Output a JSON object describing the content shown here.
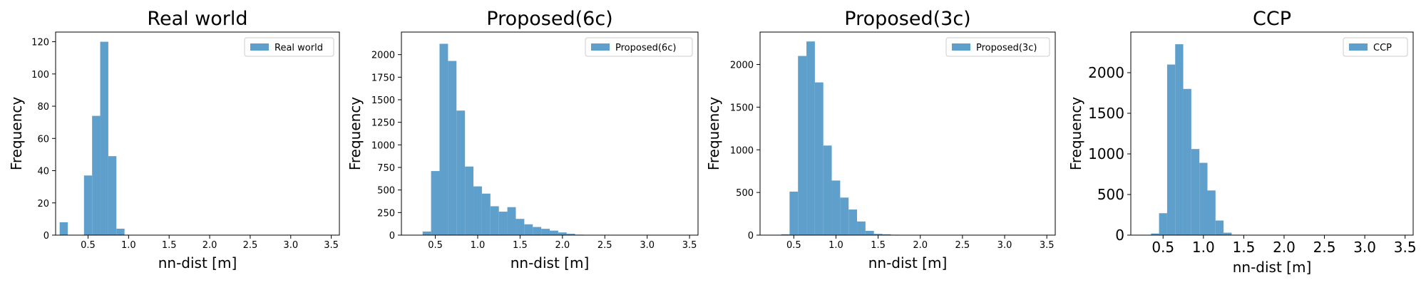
{
  "chart_data": [
    {
      "type": "bar",
      "title": "Real world",
      "xlabel": "nn-dist [m]",
      "ylabel": "Frequency",
      "xlim": [
        0.1,
        3.6
      ],
      "ylim": [
        0,
        126
      ],
      "xticks": [
        "0.5",
        "1.0",
        "1.5",
        "2.0",
        "2.5",
        "3.0",
        "3.5"
      ],
      "yticks": [
        "0",
        "20",
        "40",
        "60",
        "80",
        "100",
        "120"
      ],
      "legend": "top-right",
      "color": "#5f9fcc",
      "bin_width": 0.1,
      "series": [
        {
          "name": "Real world",
          "x": [
            0.2,
            0.3,
            0.4,
            0.5,
            0.6,
            0.7,
            0.8,
            0.9
          ],
          "values": [
            8,
            0,
            0,
            37,
            74,
            120,
            49,
            4
          ]
        }
      ]
    },
    {
      "type": "bar",
      "title": "Proposed(6c)",
      "xlabel": "nn-dist [m]",
      "ylabel": "Frequency",
      "xlim": [
        0.1,
        3.6
      ],
      "ylim": [
        0,
        2250
      ],
      "xticks": [
        "0.5",
        "1.0",
        "1.5",
        "2.0",
        "2.5",
        "3.0",
        "3.5"
      ],
      "yticks": [
        "0",
        "250",
        "500",
        "750",
        "1000",
        "1250",
        "1500",
        "1750",
        "2000"
      ],
      "legend": "top-right",
      "color": "#5f9fcc",
      "bin_width": 0.1,
      "series": [
        {
          "name": "Proposed(6c)",
          "x": [
            0.4,
            0.5,
            0.6,
            0.7,
            0.8,
            0.9,
            1.0,
            1.1,
            1.2,
            1.3,
            1.4,
            1.5,
            1.6,
            1.7,
            1.8,
            1.9,
            2.0,
            2.1,
            2.2
          ],
          "values": [
            40,
            710,
            2120,
            1930,
            1380,
            760,
            540,
            460,
            320,
            260,
            310,
            180,
            120,
            90,
            70,
            50,
            30,
            15,
            5
          ]
        }
      ]
    },
    {
      "type": "bar",
      "title": "Proposed(3c)",
      "xlabel": "nn-dist [m]",
      "ylabel": "Frequency",
      "xlim": [
        0.1,
        3.6
      ],
      "ylim": [
        0,
        2380
      ],
      "xticks": [
        "0.5",
        "1.0",
        "1.5",
        "2.0",
        "2.5",
        "3.0",
        "3.5"
      ],
      "yticks": [
        "0",
        "500",
        "1000",
        "1500",
        "2000"
      ],
      "legend": "top-right",
      "color": "#5f9fcc",
      "bin_width": 0.1,
      "series": [
        {
          "name": "Proposed(3c)",
          "x": [
            0.4,
            0.5,
            0.6,
            0.7,
            0.8,
            0.9,
            1.0,
            1.1,
            1.2,
            1.3,
            1.4,
            1.5,
            1.6,
            1.7
          ],
          "values": [
            10,
            510,
            2100,
            2270,
            1790,
            1050,
            640,
            440,
            300,
            160,
            50,
            15,
            10,
            5
          ]
        }
      ]
    },
    {
      "type": "bar",
      "title": "CCP",
      "xlabel": "nn-dist [m]",
      "ylabel": "Frequency",
      "xlim": [
        0.1,
        3.6
      ],
      "ylim": [
        0,
        2500
      ],
      "xticks": [
        "0.5",
        "1.0",
        "1.5",
        "2.0",
        "2.5",
        "3.0",
        "3.5"
      ],
      "yticks": [
        "0",
        "500",
        "1000",
        "1500",
        "2000"
      ],
      "legend": "top-right",
      "color": "#5f9fcc",
      "bin_width": 0.1,
      "series": [
        {
          "name": "CCP",
          "x": [
            0.4,
            0.5,
            0.6,
            0.7,
            0.8,
            0.9,
            1.0,
            1.1,
            1.2,
            1.3,
            1.4
          ],
          "values": [
            20,
            270,
            2100,
            2350,
            1800,
            1060,
            890,
            550,
            180,
            30,
            5
          ]
        }
      ]
    }
  ]
}
